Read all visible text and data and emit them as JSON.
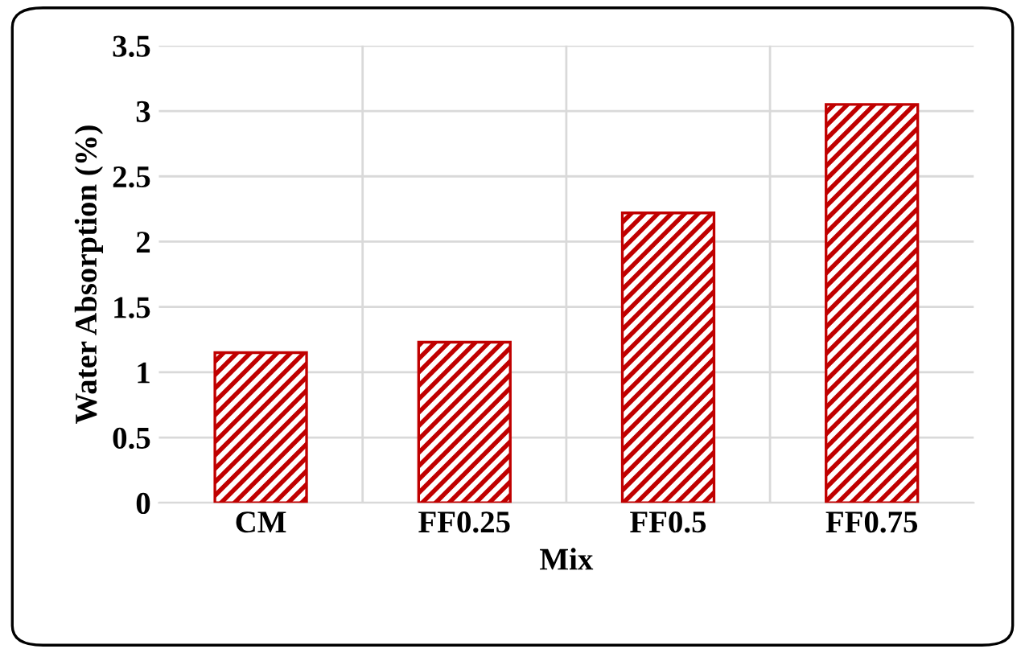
{
  "chart_data": {
    "type": "bar",
    "xlabel": "Mix",
    "ylabel": "Water Absorption (%)",
    "categories": [
      "CM",
      "FF0.25",
      "FF0.5",
      "FF0.75"
    ],
    "values": [
      1.15,
      1.23,
      2.22,
      3.05
    ],
    "color": "#c00000",
    "ylim": [
      0,
      3.5
    ],
    "yticks": [
      0,
      0.5,
      1,
      1.5,
      2,
      2.5,
      3,
      3.5
    ],
    "grid": true
  }
}
